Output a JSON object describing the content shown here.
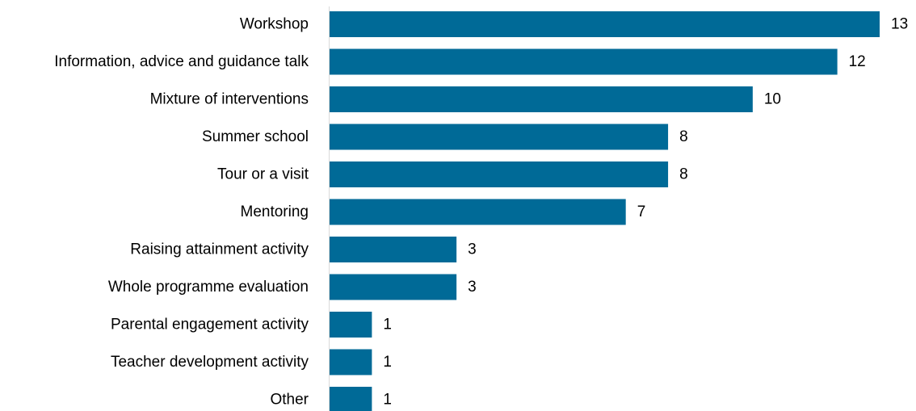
{
  "chart_data": {
    "type": "bar",
    "orientation": "horizontal",
    "categories": [
      "Workshop",
      "Information, advice and guidance talk",
      "Mixture of interventions",
      "Summer school",
      "Tour or a visit",
      "Mentoring",
      "Raising attainment activity",
      "Whole programme evaluation",
      "Parental engagement activity",
      "Teacher development activity",
      "Other"
    ],
    "values": [
      13,
      12,
      10,
      8,
      8,
      7,
      3,
      3,
      1,
      1,
      1
    ],
    "xlim": [
      0,
      13
    ],
    "data_labels": true,
    "grid": false,
    "legend": "none",
    "colors": {
      "bar": "#006a97"
    }
  }
}
